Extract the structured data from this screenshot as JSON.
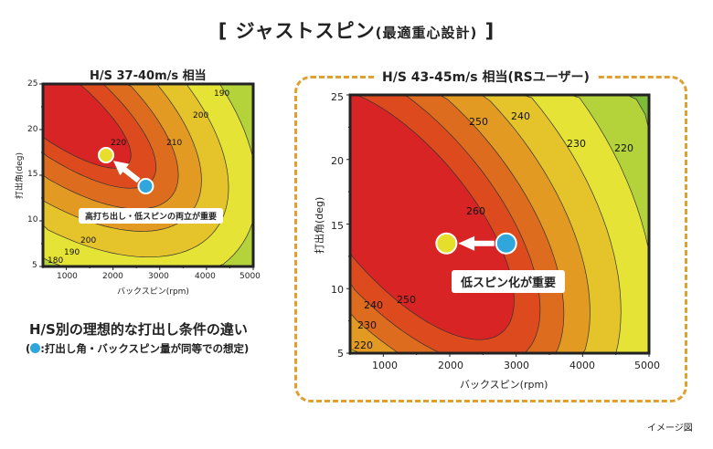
{
  "title": {
    "main": "[ ジャストスピン",
    "sub": "(最適重心設計)",
    "close": " ]"
  },
  "chart_data": [
    {
      "type": "contour",
      "title": "H/S 37-40m/s 相当",
      "xlabel": "バックスピン(rpm)",
      "ylabel": "打出角(deg)",
      "xlim": [
        500,
        5000
      ],
      "ylim": [
        5,
        25
      ],
      "xticks": [
        "1000",
        "2000",
        "3000",
        "4000",
        "5000"
      ],
      "yticks": [
        "25",
        "20",
        "15",
        "10",
        "5"
      ],
      "contour_levels": [
        180,
        190,
        200,
        210,
        220
      ],
      "contour_labels": [
        "190",
        "200",
        "220",
        "210",
        "200",
        "190",
        "180"
      ],
      "points": [
        {
          "name": "current",
          "rpm": 2700,
          "deg": 13.8,
          "color": "#2fa6dc"
        },
        {
          "name": "ideal",
          "rpm": 1850,
          "deg": 17.2,
          "color": "#e6de2a"
        }
      ],
      "callout": "高打ち出し・低スピンの両立が重要"
    },
    {
      "type": "contour",
      "title": "H/S 43-45m/s 相当(RSユーザー)",
      "xlabel": "バックスピン(rpm)",
      "ylabel": "打出角(deg)",
      "xlim": [
        500,
        5000
      ],
      "ylim": [
        5,
        25
      ],
      "xticks": [
        "1000",
        "2000",
        "3000",
        "4000",
        "5000"
      ],
      "yticks": [
        "25",
        "20",
        "15",
        "10",
        "5"
      ],
      "contour_levels": [
        220,
        230,
        240,
        250,
        260
      ],
      "contour_labels": [
        "250",
        "240",
        "230",
        "220",
        "260",
        "240",
        "250",
        "230",
        "220"
      ],
      "points": [
        {
          "name": "current",
          "rpm": 2850,
          "deg": 13.5,
          "color": "#2fa6dc"
        },
        {
          "name": "ideal",
          "rpm": 1950,
          "deg": 13.5,
          "color": "#e6de2a"
        }
      ],
      "callout": "低スピン化が重要"
    }
  ],
  "caption": {
    "line1": "H/S別の理想的な打出し条件の違い",
    "line2_open": "(",
    "line2": ":打出し角・バックスピン量が同等での想定)"
  },
  "note": "イメージ図"
}
